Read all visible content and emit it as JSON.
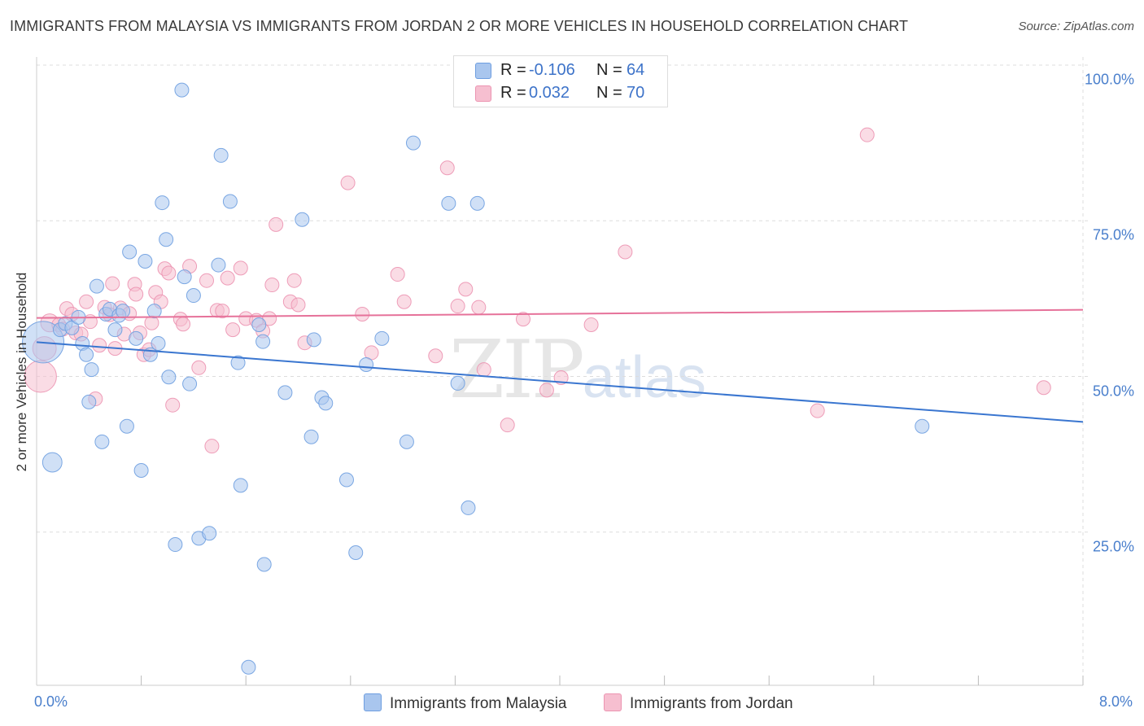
{
  "header": {
    "title": "IMMIGRANTS FROM MALAYSIA VS IMMIGRANTS FROM JORDAN 2 OR MORE VEHICLES IN HOUSEHOLD CORRELATION CHART",
    "source": "Source: ZipAtlas.com"
  },
  "watermark": {
    "zip": "ZIP",
    "atlas": "atlas"
  },
  "stats": {
    "malaysia": {
      "r_label": "R =",
      "r_value": "-0.106",
      "n_label": "N =",
      "n_value": "64"
    },
    "jordan": {
      "r_label": "R =",
      "r_value": "0.032",
      "n_label": "N =",
      "n_value": "70"
    }
  },
  "colors": {
    "malaysia_fill": "#a9c6ee",
    "malaysia_stroke": "#6e9ee0",
    "malaysia_line": "#3a76d0",
    "jordan_fill": "#f6bfd0",
    "jordan_stroke": "#ec94b1",
    "jordan_line": "#e6729a",
    "grid": "#dddddd",
    "axis_text": "#4a7fcc"
  },
  "chart_data": {
    "type": "scatter",
    "title": "IMMIGRANTS FROM MALAYSIA VS IMMIGRANTS FROM JORDAN 2 OR MORE VEHICLES IN HOUSEHOLD CORRELATION CHART",
    "xlabel": "",
    "ylabel": "2 or more Vehicles in Household",
    "xlim": [
      0,
      8
    ],
    "ylim": [
      0,
      102
    ],
    "x_tick_labels": {
      "min": "0.0%",
      "max": "8.0%"
    },
    "y_ticks": [
      {
        "value": 25,
        "label": "25.0%"
      },
      {
        "value": 50,
        "label": "50.0%"
      },
      {
        "value": 75,
        "label": "75.0%"
      },
      {
        "value": 100,
        "label": "100.0%"
      }
    ],
    "grid": true,
    "legend": {
      "placement": "bottom-center",
      "entries": [
        "Immigrants from Malaysia",
        "Immigrants from Jordan"
      ]
    },
    "series": [
      {
        "name": "Immigrants from Malaysia",
        "trend": [
          [
            0.0,
            55.5
          ],
          [
            8.0,
            42.7
          ]
        ],
        "points": [
          [
            0.05,
            55.5,
            3
          ],
          [
            0.12,
            36.2,
            1.4
          ],
          [
            0.18,
            57.5,
            1
          ],
          [
            0.22,
            58.5,
            1
          ],
          [
            0.27,
            57.8,
            1
          ],
          [
            0.32,
            59.5,
            1
          ],
          [
            0.35,
            55.3,
            1
          ],
          [
            0.38,
            53.5,
            1
          ],
          [
            0.4,
            45.9,
            1
          ],
          [
            0.42,
            51.1,
            1
          ],
          [
            0.46,
            64.5,
            1
          ],
          [
            0.5,
            39.5,
            1
          ],
          [
            0.53,
            60.0,
            1
          ],
          [
            0.56,
            60.8,
            1
          ],
          [
            0.6,
            57.5,
            1
          ],
          [
            0.63,
            59.8,
            1
          ],
          [
            0.66,
            60.5,
            1
          ],
          [
            0.69,
            42.0,
            1
          ],
          [
            0.71,
            70.0,
            1
          ],
          [
            0.76,
            56.1,
            1
          ],
          [
            0.8,
            34.9,
            1
          ],
          [
            0.83,
            68.5,
            1
          ],
          [
            0.87,
            53.5,
            1
          ],
          [
            0.9,
            60.5,
            1
          ],
          [
            0.93,
            55.3,
            1
          ],
          [
            0.96,
            77.9,
            1
          ],
          [
            0.99,
            72.0,
            1
          ],
          [
            1.01,
            49.9,
            1
          ],
          [
            1.06,
            23.0,
            1
          ],
          [
            1.11,
            96.0,
            1
          ],
          [
            1.13,
            66.0,
            1
          ],
          [
            1.17,
            48.8,
            1
          ],
          [
            1.2,
            63.0,
            1
          ],
          [
            1.24,
            24.0,
            1
          ],
          [
            1.32,
            24.8,
            1
          ],
          [
            1.39,
            67.9,
            1
          ],
          [
            1.41,
            85.5,
            1
          ],
          [
            1.48,
            78.1,
            1
          ],
          [
            1.54,
            52.2,
            1
          ],
          [
            1.56,
            32.5,
            1
          ],
          [
            1.62,
            3.3,
            1
          ],
          [
            1.7,
            58.3,
            1
          ],
          [
            1.73,
            55.6,
            1
          ],
          [
            1.74,
            19.8,
            1
          ],
          [
            1.9,
            47.4,
            1
          ],
          [
            2.03,
            75.2,
            1
          ],
          [
            2.1,
            40.3,
            1
          ],
          [
            2.12,
            55.9,
            1
          ],
          [
            2.18,
            46.6,
            1
          ],
          [
            2.21,
            45.7,
            1
          ],
          [
            2.37,
            33.4,
            1
          ],
          [
            2.44,
            21.7,
            1
          ],
          [
            2.52,
            51.9,
            1
          ],
          [
            2.64,
            56.1,
            1
          ],
          [
            2.83,
            39.5,
            1
          ],
          [
            2.88,
            87.5,
            1
          ],
          [
            3.15,
            77.8,
            1
          ],
          [
            3.22,
            48.9,
            1
          ],
          [
            3.3,
            28.9,
            1
          ],
          [
            3.37,
            77.8,
            1
          ],
          [
            6.77,
            42.0,
            1
          ]
        ]
      },
      {
        "name": "Immigrants from Jordan",
        "trend": [
          [
            0.0,
            59.4
          ],
          [
            8.0,
            60.7
          ]
        ],
        "points": [
          [
            0.03,
            50.0,
            2.3
          ],
          [
            0.06,
            54.5,
            1.7
          ],
          [
            0.1,
            58.6,
            1.3
          ],
          [
            0.17,
            58.3,
            1
          ],
          [
            0.2,
            57.6,
            1
          ],
          [
            0.23,
            60.9,
            1
          ],
          [
            0.27,
            60.0,
            1
          ],
          [
            0.3,
            57.0,
            1
          ],
          [
            0.34,
            56.8,
            1
          ],
          [
            0.38,
            62.0,
            1
          ],
          [
            0.41,
            58.8,
            1
          ],
          [
            0.45,
            46.4,
            1
          ],
          [
            0.48,
            55.0,
            1
          ],
          [
            0.52,
            61.1,
            1
          ],
          [
            0.56,
            59.9,
            1
          ],
          [
            0.58,
            64.9,
            1
          ],
          [
            0.6,
            54.5,
            1
          ],
          [
            0.64,
            61.0,
            1
          ],
          [
            0.67,
            56.8,
            1
          ],
          [
            0.71,
            60.1,
            1
          ],
          [
            0.75,
            64.8,
            1
          ],
          [
            0.76,
            63.2,
            1
          ],
          [
            0.79,
            57.0,
            1
          ],
          [
            0.82,
            53.5,
            1
          ],
          [
            0.86,
            54.3,
            1
          ],
          [
            0.88,
            58.6,
            1
          ],
          [
            0.91,
            63.5,
            1
          ],
          [
            0.95,
            62.0,
            1
          ],
          [
            0.98,
            67.3,
            1
          ],
          [
            1.01,
            66.6,
            1
          ],
          [
            1.04,
            45.4,
            1
          ],
          [
            1.1,
            59.2,
            1
          ],
          [
            1.12,
            58.4,
            1
          ],
          [
            1.17,
            67.7,
            1
          ],
          [
            1.24,
            51.4,
            1
          ],
          [
            1.3,
            65.4,
            1
          ],
          [
            1.34,
            38.8,
            1
          ],
          [
            1.38,
            60.6,
            1
          ],
          [
            1.42,
            60.5,
            1
          ],
          [
            1.46,
            65.8,
            1
          ],
          [
            1.5,
            57.5,
            1
          ],
          [
            1.56,
            67.4,
            1
          ],
          [
            1.6,
            59.3,
            1
          ],
          [
            1.68,
            59.0,
            1
          ],
          [
            1.73,
            57.3,
            1
          ],
          [
            1.78,
            59.3,
            1
          ],
          [
            1.8,
            64.7,
            1
          ],
          [
            1.83,
            74.4,
            1
          ],
          [
            1.94,
            62.0,
            1
          ],
          [
            1.97,
            65.4,
            1
          ],
          [
            2.0,
            61.5,
            1
          ],
          [
            2.05,
            55.4,
            1
          ],
          [
            2.38,
            81.1,
            1
          ],
          [
            2.49,
            60.0,
            1
          ],
          [
            2.56,
            53.8,
            1
          ],
          [
            2.76,
            66.4,
            1
          ],
          [
            2.81,
            62.0,
            1
          ],
          [
            3.05,
            53.3,
            1
          ],
          [
            3.14,
            83.5,
            1
          ],
          [
            3.22,
            61.3,
            1
          ],
          [
            3.28,
            64.0,
            1
          ],
          [
            3.38,
            61.1,
            1
          ],
          [
            3.42,
            51.1,
            1
          ],
          [
            3.6,
            42.2,
            1
          ],
          [
            3.72,
            59.2,
            1
          ],
          [
            3.9,
            47.8,
            1
          ],
          [
            4.01,
            49.8,
            1
          ],
          [
            4.24,
            58.3,
            1
          ],
          [
            4.5,
            70.0,
            1
          ],
          [
            5.97,
            44.5,
            1
          ],
          [
            6.35,
            88.8,
            1
          ],
          [
            7.7,
            48.2,
            1
          ]
        ]
      }
    ]
  },
  "legend": {
    "malaysia_label": "Immigrants from Malaysia",
    "jordan_label": "Immigrants from Jordan"
  }
}
